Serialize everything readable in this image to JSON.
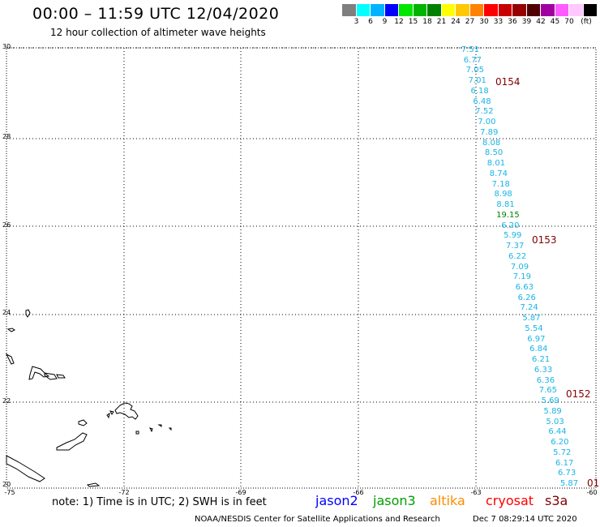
{
  "header": {
    "title": "00:00 – 11:59 UTC 12/04/2020",
    "subtitle": "12 hour collection of altimeter wave heights"
  },
  "legend": {
    "unit": "(ft)",
    "colors": [
      "#7f7f7f",
      "#00ffff",
      "#00b4ff",
      "#0000ff",
      "#00e600",
      "#00b400",
      "#008200",
      "#ffff00",
      "#ffc800",
      "#ff8200",
      "#ff0000",
      "#c80000",
      "#960000",
      "#500000",
      "#a000a0",
      "#ff5aff",
      "#ffc8ff",
      "#000000"
    ],
    "labels": [
      "3",
      "6",
      "9",
      "12",
      "15",
      "18",
      "21",
      "24",
      "27",
      "30",
      "33",
      "36",
      "39",
      "42",
      "45",
      "70"
    ]
  },
  "axes": {
    "lat_labels": [
      "30",
      "28",
      "26",
      "24",
      "22",
      "20"
    ],
    "lon_labels": [
      "-75",
      "-72",
      "-69",
      "-66",
      "-63",
      "-60"
    ]
  },
  "track": {
    "color": "#1ab4e6",
    "highlight_color": "#008200",
    "heights": [
      "7.51",
      "6.77",
      "7.05",
      "7.01",
      "6.18",
      "6.48",
      "7.52",
      "7.00",
      "7.89",
      "8.08",
      "8.50",
      "8.01",
      "8.74",
      "7.18",
      "8.98",
      "8.81",
      "19.15",
      "6.20",
      "5.99",
      "7.37",
      "6.22",
      "7.09",
      "7.19",
      "6.63",
      "6.26",
      "7.24",
      "5.87",
      "5.54",
      "6.97",
      "6.84",
      "6.21",
      "6.33",
      "6.36",
      "7.65",
      "5.69",
      "5.89",
      "5.03",
      "6.44",
      "6.20",
      "5.72",
      "6.17",
      "6.73",
      "5.87"
    ],
    "highlight_index": 16
  },
  "passes": [
    "0154",
    "0153",
    "0152",
    "01"
  ],
  "notes": {
    "note": "note: 1) Time is in UTC; 2) SWH is in feet",
    "satellites": [
      {
        "name": "jason2",
        "color": "#0000ff"
      },
      {
        "name": "jason3",
        "color": "#00a000"
      },
      {
        "name": "altika",
        "color": "#ff8c00"
      },
      {
        "name": "cryosat",
        "color": "#ff0000"
      },
      {
        "name": "s3a",
        "color": "#800000"
      }
    ]
  },
  "footer": {
    "credit": "NOAA/NESDIS Center for Satellite Applications and Research",
    "timestamp": "Dec  7 08:29:14 UTC 2020"
  }
}
